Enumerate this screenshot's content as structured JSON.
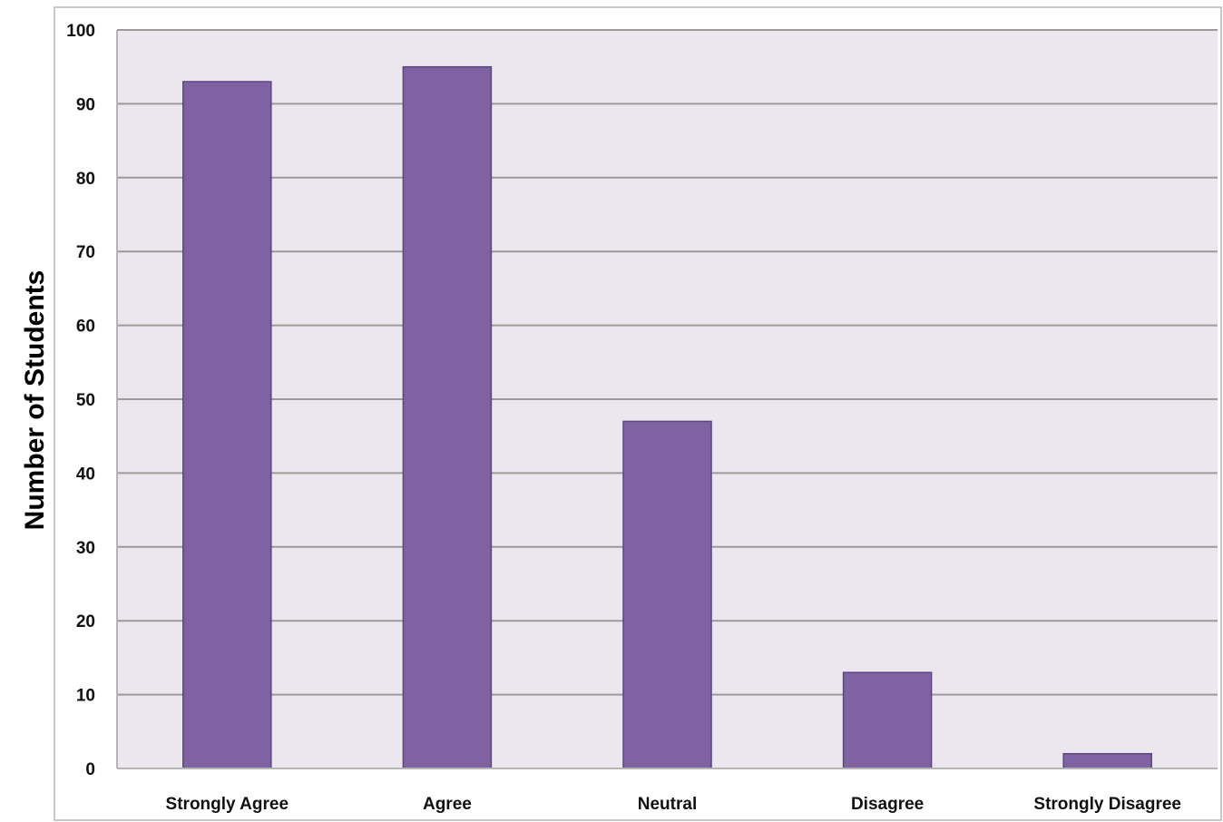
{
  "chart_data": {
    "type": "bar",
    "title": "",
    "xlabel": "",
    "ylabel": "Number of Students",
    "categories": [
      "Strongly Agree",
      "Agree",
      "Neutral",
      "Disagree",
      "Strongly Disagree"
    ],
    "series": [
      {
        "values": [
          93,
          95,
          47,
          13,
          2
        ]
      }
    ],
    "ylim": [
      0,
      100
    ],
    "yticks": [
      0,
      10,
      20,
      30,
      40,
      50,
      60,
      70,
      80,
      90,
      100
    ],
    "grid": true,
    "legend": "none",
    "colors": {
      "bar": "#7e62a1",
      "bar_edge": "#5d4780",
      "plot_background": "#ece7ef",
      "gridline": "#9a9a9a",
      "frame": "#b5b5b5"
    }
  }
}
